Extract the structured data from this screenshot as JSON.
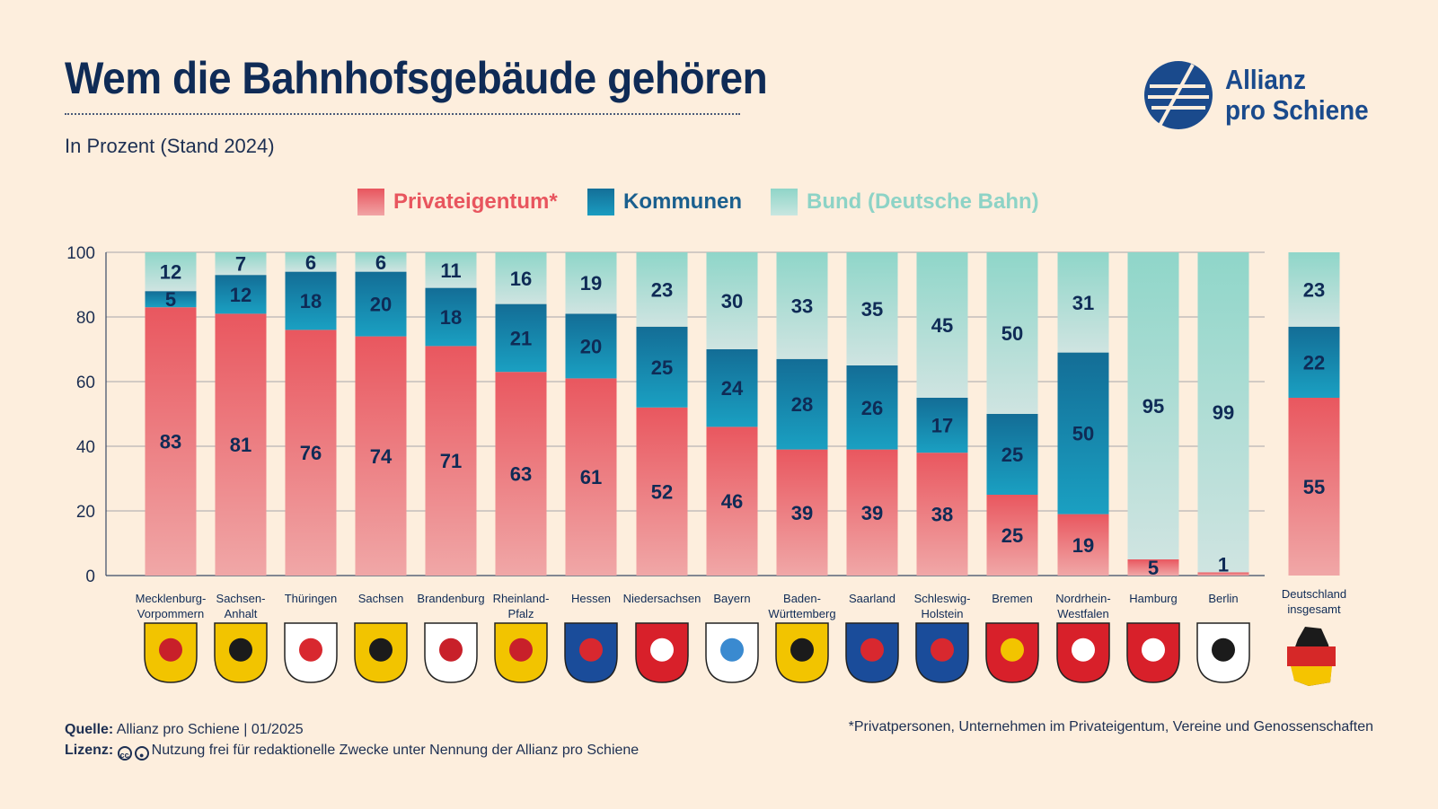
{
  "title": "Wem die Bahnhofsgebäude gehören",
  "subtitle": "In Prozent (Stand 2024)",
  "logo": {
    "line1": "Allianz",
    "line2": "pro Schiene"
  },
  "colors": {
    "privat": "#ea5f67",
    "kommunen": "#1487ad",
    "bund": "#9dd8cd",
    "title": "#0f2b56"
  },
  "legend": [
    {
      "label": "Privateigentum*",
      "color": "#e8555e",
      "text_color": "#e8555e"
    },
    {
      "label": "Kommunen",
      "color": "#1487ad",
      "text_color": "#1a5f8e"
    },
    {
      "label": "Bund (Deutsche Bahn)",
      "color": "#a6ddd3",
      "text_color": "#8dd3c6"
    }
  ],
  "chart_data": {
    "type": "bar",
    "stacked": true,
    "ylim": [
      0,
      100
    ],
    "yticks": [
      0,
      20,
      40,
      60,
      80,
      100
    ],
    "categories": [
      [
        "Mecklenburg-",
        "Vorpommern"
      ],
      [
        "Sachsen-",
        "Anhalt"
      ],
      [
        "Thüringen"
      ],
      [
        "Sachsen"
      ],
      [
        "Brandenburg"
      ],
      [
        "Rheinland-",
        "Pfalz"
      ],
      [
        "Hessen"
      ],
      [
        "Niedersachsen"
      ],
      [
        "Bayern"
      ],
      [
        "Baden-",
        "Württemberg"
      ],
      [
        "Saarland"
      ],
      [
        "Schleswig-",
        "Holstein"
      ],
      [
        "Bremen"
      ],
      [
        "Nordrhein-",
        "Westfalen"
      ],
      [
        "Hamburg"
      ],
      [
        "Berlin"
      ],
      [
        "Deutschland",
        "insgesamt"
      ]
    ],
    "series": [
      {
        "name": "Privateigentum*",
        "values": [
          83,
          81,
          76,
          74,
          71,
          63,
          61,
          52,
          46,
          39,
          39,
          38,
          25,
          19,
          5,
          1,
          55
        ]
      },
      {
        "name": "Kommunen",
        "values": [
          5,
          12,
          18,
          20,
          18,
          21,
          20,
          25,
          24,
          28,
          26,
          17,
          25,
          50,
          0,
          0,
          22
        ]
      },
      {
        "name": "Bund (Deutsche Bahn)",
        "values": [
          12,
          7,
          6,
          6,
          11,
          16,
          19,
          23,
          30,
          33,
          35,
          45,
          50,
          31,
          95,
          99,
          23
        ]
      }
    ],
    "grid": true,
    "legend_position": "top"
  },
  "footer": {
    "source_label": "Quelle:",
    "source_text": "Allianz pro Schiene | 01/2025",
    "license_label": "Lizenz:",
    "license_text": "Nutzung frei für redaktionelle Zwecke unter Nennung der Allianz pro Schiene",
    "footnote": "*Privatpersonen, Unternehmen im Privateigentum, Vereine und Genossenschaften"
  }
}
